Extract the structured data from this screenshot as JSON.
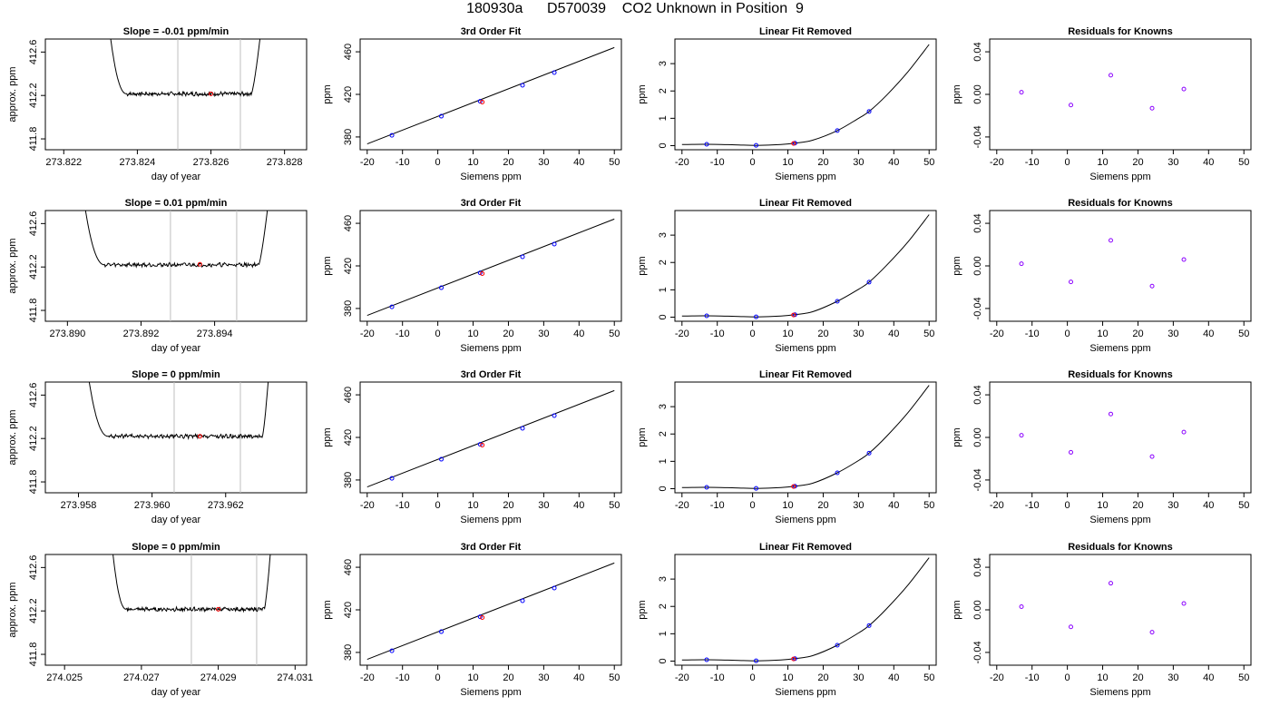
{
  "figure_title": "180930a      D570039    CO2 Unknown in Position  9",
  "colors": {
    "trace": "#000000",
    "grid_vline": "#bebebe",
    "known_point": "#0000ff",
    "unknown_point": "#ff0000",
    "residual_point": "#8b00ff"
  },
  "chart_data": [
    {
      "type": "line",
      "row": 0,
      "col": 0,
      "title": "Slope =  -0.01  ppm/min",
      "xlabel": "day of year",
      "ylabel": "approx. ppm",
      "xlim": [
        273.8215,
        273.8286
      ],
      "ylim": [
        411.7,
        412.72
      ],
      "xticks": [
        273.822,
        273.824,
        273.826,
        273.828
      ],
      "xtick_labels": [
        "273.822",
        "273.824",
        "273.826",
        "273.828"
      ],
      "yticks": [
        411.8,
        412.2,
        412.6
      ],
      "ytick_labels": [
        "411.8",
        "412.2",
        "412.6"
      ],
      "trace": {
        "x_start": 273.8232,
        "x_end": 273.8274,
        "settle_level": 412.215,
        "settle_x": 273.8237,
        "rise_x": 273.8271
      },
      "vlines": [
        273.8251,
        273.8268
      ],
      "marker": {
        "x": 273.826,
        "y": 412.215
      }
    },
    {
      "type": "scatter",
      "row": 0,
      "col": 1,
      "title": "3rd Order Fit",
      "xlabel": "Siemens ppm",
      "ylabel": "ppm",
      "xlim": [
        -22,
        52
      ],
      "ylim": [
        368,
        472
      ],
      "xticks": [
        -20,
        -10,
        0,
        10,
        20,
        30,
        40,
        50
      ],
      "yticks": [
        380,
        420,
        460
      ],
      "fit_line": {
        "x": [
          -20,
          50
        ],
        "y": [
          373.5,
          464
        ]
      },
      "known_points": {
        "x": [
          -13,
          1,
          12,
          24,
          33
        ],
        "y": [
          381.5,
          399.5,
          413.5,
          428.5,
          440.5
        ]
      },
      "unknown_points": {
        "x": [
          12.6
        ],
        "y": [
          412.8
        ]
      }
    },
    {
      "type": "scatter",
      "row": 0,
      "col": 2,
      "title": "Linear Fit Removed",
      "xlabel": "Siemens ppm",
      "ylabel": "ppm",
      "xlim": [
        -22,
        52
      ],
      "ylim": [
        -0.15,
        3.9
      ],
      "xticks": [
        -20,
        -10,
        0,
        10,
        20,
        30,
        40,
        50
      ],
      "yticks": [
        0,
        1,
        2,
        3
      ],
      "curve": {
        "x": [
          -20,
          -13,
          -5,
          1,
          8,
          12,
          17,
          24,
          30,
          33,
          38,
          44,
          50
        ],
        "y": [
          0.04,
          0.05,
          0.03,
          0.01,
          0.04,
          0.09,
          0.2,
          0.55,
          1.0,
          1.25,
          1.85,
          2.7,
          3.7
        ]
      },
      "known_points": {
        "x": [
          -13,
          1,
          12,
          24,
          33
        ],
        "y": [
          0.05,
          0.01,
          0.09,
          0.55,
          1.25
        ]
      },
      "unknown_points": {
        "x": [
          11.6
        ],
        "y": [
          0.08
        ]
      }
    },
    {
      "type": "scatter",
      "row": 0,
      "col": 3,
      "title": "Residuals for Knowns",
      "xlabel": "Siemens ppm",
      "ylabel": "ppm",
      "xlim": [
        -22,
        52
      ],
      "ylim": [
        -0.052,
        0.052
      ],
      "xticks": [
        -20,
        -10,
        0,
        10,
        20,
        30,
        40,
        50
      ],
      "yticks": [
        -0.04,
        0,
        0.04
      ],
      "ytick_labels": [
        "-0.04",
        "0.00",
        "0.04"
      ],
      "points": {
        "x": [
          -13,
          1,
          12.3,
          24,
          33
        ],
        "y": [
          0.002,
          -0.01,
          0.018,
          -0.013,
          0.005
        ]
      }
    },
    {
      "type": "line",
      "row": 1,
      "col": 0,
      "title": "Slope =  0.01  ppm/min",
      "xlabel": "day of year",
      "ylabel": "approx. ppm",
      "xlim": [
        273.8894,
        273.8965
      ],
      "ylim": [
        411.7,
        412.72
      ],
      "xticks": [
        273.89,
        273.892,
        273.894
      ],
      "xtick_labels": [
        "273.890",
        "273.892",
        "273.894"
      ],
      "yticks": [
        411.8,
        412.2,
        412.6
      ],
      "ytick_labels": [
        "411.8",
        "412.2",
        "412.6"
      ],
      "trace": {
        "x_start": 273.8904,
        "x_end": 273.8955,
        "settle_level": 412.22,
        "settle_x": 273.891,
        "rise_x": 273.8952
      },
      "vlines": [
        273.8928,
        273.8946
      ],
      "marker": {
        "x": 273.8936,
        "y": 412.225
      }
    },
    {
      "type": "scatter",
      "row": 1,
      "col": 1,
      "title": "3rd Order Fit",
      "xlabel": "Siemens ppm",
      "ylabel": "ppm",
      "xlim": [
        -22,
        52
      ],
      "ylim": [
        368,
        472
      ],
      "xticks": [
        -20,
        -10,
        0,
        10,
        20,
        30,
        40,
        50
      ],
      "yticks": [
        380,
        420,
        460
      ],
      "fit_line": {
        "x": [
          -20,
          50
        ],
        "y": [
          373.5,
          464
        ]
      },
      "known_points": {
        "x": [
          -13,
          1,
          12,
          24,
          33
        ],
        "y": [
          381.5,
          399.5,
          413.5,
          428.5,
          440.5
        ]
      },
      "unknown_points": {
        "x": [
          12.6
        ],
        "y": [
          412.8
        ]
      }
    },
    {
      "type": "scatter",
      "row": 1,
      "col": 2,
      "title": "Linear Fit Removed",
      "xlabel": "Siemens ppm",
      "ylabel": "ppm",
      "xlim": [
        -22,
        52
      ],
      "ylim": [
        -0.15,
        3.9
      ],
      "xticks": [
        -20,
        -10,
        0,
        10,
        20,
        30,
        40,
        50
      ],
      "yticks": [
        0,
        1,
        2,
        3
      ],
      "curve": {
        "x": [
          -20,
          -13,
          -5,
          1,
          8,
          12,
          17,
          24,
          30,
          33,
          38,
          44,
          50
        ],
        "y": [
          0.04,
          0.05,
          0.03,
          0.01,
          0.04,
          0.09,
          0.2,
          0.58,
          1.02,
          1.28,
          1.9,
          2.75,
          3.75
        ]
      },
      "known_points": {
        "x": [
          -13,
          1,
          12,
          24,
          33
        ],
        "y": [
          0.05,
          0.01,
          0.09,
          0.58,
          1.28
        ]
      },
      "unknown_points": {
        "x": [
          11.6
        ],
        "y": [
          0.08
        ]
      }
    },
    {
      "type": "scatter",
      "row": 1,
      "col": 3,
      "title": "Residuals for Knowns",
      "xlabel": "Siemens ppm",
      "ylabel": "ppm",
      "xlim": [
        -22,
        52
      ],
      "ylim": [
        -0.052,
        0.052
      ],
      "xticks": [
        -20,
        -10,
        0,
        10,
        20,
        30,
        40,
        50
      ],
      "yticks": [
        -0.04,
        0,
        0.04
      ],
      "ytick_labels": [
        "-0.04",
        "0.00",
        "0.04"
      ],
      "points": {
        "x": [
          -13,
          1,
          12.3,
          24,
          33
        ],
        "y": [
          0.002,
          -0.015,
          0.024,
          -0.019,
          0.006
        ]
      }
    },
    {
      "type": "line",
      "row": 2,
      "col": 0,
      "title": "Slope =  0  ppm/min",
      "xlabel": "day of year",
      "ylabel": "approx. ppm",
      "xlim": [
        273.9571,
        273.9642
      ],
      "ylim": [
        411.7,
        412.72
      ],
      "xticks": [
        273.958,
        273.96,
        273.962
      ],
      "xtick_labels": [
        "273.958",
        "273.960",
        "273.962"
      ],
      "yticks": [
        411.8,
        412.2,
        412.6
      ],
      "ytick_labels": [
        "411.8",
        "412.2",
        "412.6"
      ],
      "trace": {
        "x_start": 273.9582,
        "x_end": 273.9632,
        "settle_level": 412.22,
        "settle_x": 273.9588,
        "rise_x": 273.963
      },
      "vlines": [
        273.9606,
        273.9624
      ],
      "marker": {
        "x": 273.9613,
        "y": 412.22
      }
    },
    {
      "type": "scatter",
      "row": 2,
      "col": 1,
      "title": "3rd Order Fit",
      "xlabel": "Siemens ppm",
      "ylabel": "ppm",
      "xlim": [
        -22,
        52
      ],
      "ylim": [
        368,
        472
      ],
      "xticks": [
        -20,
        -10,
        0,
        10,
        20,
        30,
        40,
        50
      ],
      "yticks": [
        380,
        420,
        460
      ],
      "fit_line": {
        "x": [
          -20,
          50
        ],
        "y": [
          373.5,
          464
        ]
      },
      "known_points": {
        "x": [
          -13,
          1,
          12,
          24,
          33
        ],
        "y": [
          381.5,
          399.5,
          413.5,
          428.5,
          440.5
        ]
      },
      "unknown_points": {
        "x": [
          12.6
        ],
        "y": [
          412.8
        ]
      }
    },
    {
      "type": "scatter",
      "row": 2,
      "col": 2,
      "title": "Linear Fit Removed",
      "xlabel": "Siemens ppm",
      "ylabel": "ppm",
      "xlim": [
        -22,
        52
      ],
      "ylim": [
        -0.15,
        3.9
      ],
      "xticks": [
        -20,
        -10,
        0,
        10,
        20,
        30,
        40,
        50
      ],
      "yticks": [
        0,
        1,
        2,
        3
      ],
      "curve": {
        "x": [
          -20,
          -13,
          -5,
          1,
          8,
          12,
          17,
          24,
          30,
          33,
          38,
          44,
          50
        ],
        "y": [
          0.04,
          0.05,
          0.03,
          0.01,
          0.04,
          0.09,
          0.2,
          0.58,
          1.03,
          1.3,
          1.92,
          2.78,
          3.78
        ]
      },
      "known_points": {
        "x": [
          -13,
          1,
          12,
          24,
          33
        ],
        "y": [
          0.05,
          0.01,
          0.09,
          0.58,
          1.3
        ]
      },
      "unknown_points": {
        "x": [
          11.6
        ],
        "y": [
          0.08
        ]
      }
    },
    {
      "type": "scatter",
      "row": 2,
      "col": 3,
      "title": "Residuals for Knowns",
      "xlabel": "Siemens ppm",
      "ylabel": "ppm",
      "xlim": [
        -22,
        52
      ],
      "ylim": [
        -0.052,
        0.052
      ],
      "xticks": [
        -20,
        -10,
        0,
        10,
        20,
        30,
        40,
        50
      ],
      "yticks": [
        -0.04,
        0,
        0.04
      ],
      "ytick_labels": [
        "-0.04",
        "0.00",
        "0.04"
      ],
      "points": {
        "x": [
          -13,
          1,
          12.3,
          24,
          33
        ],
        "y": [
          0.002,
          -0.014,
          0.022,
          -0.018,
          0.005
        ]
      }
    },
    {
      "type": "line",
      "row": 3,
      "col": 0,
      "title": "Slope =  0  ppm/min",
      "xlabel": "day of year",
      "ylabel": "approx. ppm",
      "xlim": [
        274.0245,
        274.0313
      ],
      "ylim": [
        411.7,
        412.72
      ],
      "xticks": [
        274.025,
        274.027,
        274.029,
        274.031
      ],
      "xtick_labels": [
        "274.025",
        "274.027",
        "274.029",
        "274.031"
      ],
      "yticks": [
        411.8,
        412.2,
        412.6
      ],
      "ytick_labels": [
        "411.8",
        "412.2",
        "412.6"
      ],
      "trace": {
        "x_start": 274.0262,
        "x_end": 274.0304,
        "settle_level": 412.215,
        "settle_x": 274.0266,
        "rise_x": 274.0302
      },
      "vlines": [
        274.0283,
        274.03
      ],
      "marker": {
        "x": 274.029,
        "y": 412.215
      }
    },
    {
      "type": "scatter",
      "row": 3,
      "col": 1,
      "title": "3rd Order Fit",
      "xlabel": "Siemens ppm",
      "ylabel": "ppm",
      "xlim": [
        -22,
        52
      ],
      "ylim": [
        368,
        472
      ],
      "xticks": [
        -20,
        -10,
        0,
        10,
        20,
        30,
        40,
        50
      ],
      "yticks": [
        380,
        420,
        460
      ],
      "fit_line": {
        "x": [
          -20,
          50
        ],
        "y": [
          373.5,
          464
        ]
      },
      "known_points": {
        "x": [
          -13,
          1,
          12,
          24,
          33
        ],
        "y": [
          381.5,
          399.5,
          413.5,
          428.5,
          440.5
        ]
      },
      "unknown_points": {
        "x": [
          12.6
        ],
        "y": [
          412.8
        ]
      }
    },
    {
      "type": "scatter",
      "row": 3,
      "col": 2,
      "title": "Linear Fit Removed",
      "xlabel": "Siemens ppm",
      "ylabel": "ppm",
      "xlim": [
        -22,
        52
      ],
      "ylim": [
        -0.15,
        3.9
      ],
      "xticks": [
        -20,
        -10,
        0,
        10,
        20,
        30,
        40,
        50
      ],
      "yticks": [
        0,
        1,
        2,
        3
      ],
      "curve": {
        "x": [
          -20,
          -13,
          -5,
          1,
          8,
          12,
          17,
          24,
          30,
          33,
          38,
          44,
          50
        ],
        "y": [
          0.04,
          0.05,
          0.03,
          0.01,
          0.04,
          0.09,
          0.2,
          0.58,
          1.03,
          1.3,
          1.92,
          2.78,
          3.78
        ]
      },
      "known_points": {
        "x": [
          -13,
          1,
          12,
          24,
          33
        ],
        "y": [
          0.05,
          0.01,
          0.09,
          0.58,
          1.3
        ]
      },
      "unknown_points": {
        "x": [
          11.6
        ],
        "y": [
          0.08
        ]
      }
    },
    {
      "type": "scatter",
      "row": 3,
      "col": 3,
      "title": "Residuals for Knowns",
      "xlabel": "Siemens ppm",
      "ylabel": "ppm",
      "xlim": [
        -22,
        52
      ],
      "ylim": [
        -0.052,
        0.052
      ],
      "xticks": [
        -20,
        -10,
        0,
        10,
        20,
        30,
        40,
        50
      ],
      "yticks": [
        -0.04,
        0,
        0.04
      ],
      "ytick_labels": [
        "-0.04",
        "0.00",
        "0.04"
      ],
      "points": {
        "x": [
          -13,
          1,
          12.3,
          24,
          33
        ],
        "y": [
          0.003,
          -0.016,
          0.025,
          -0.021,
          0.006
        ]
      }
    }
  ]
}
